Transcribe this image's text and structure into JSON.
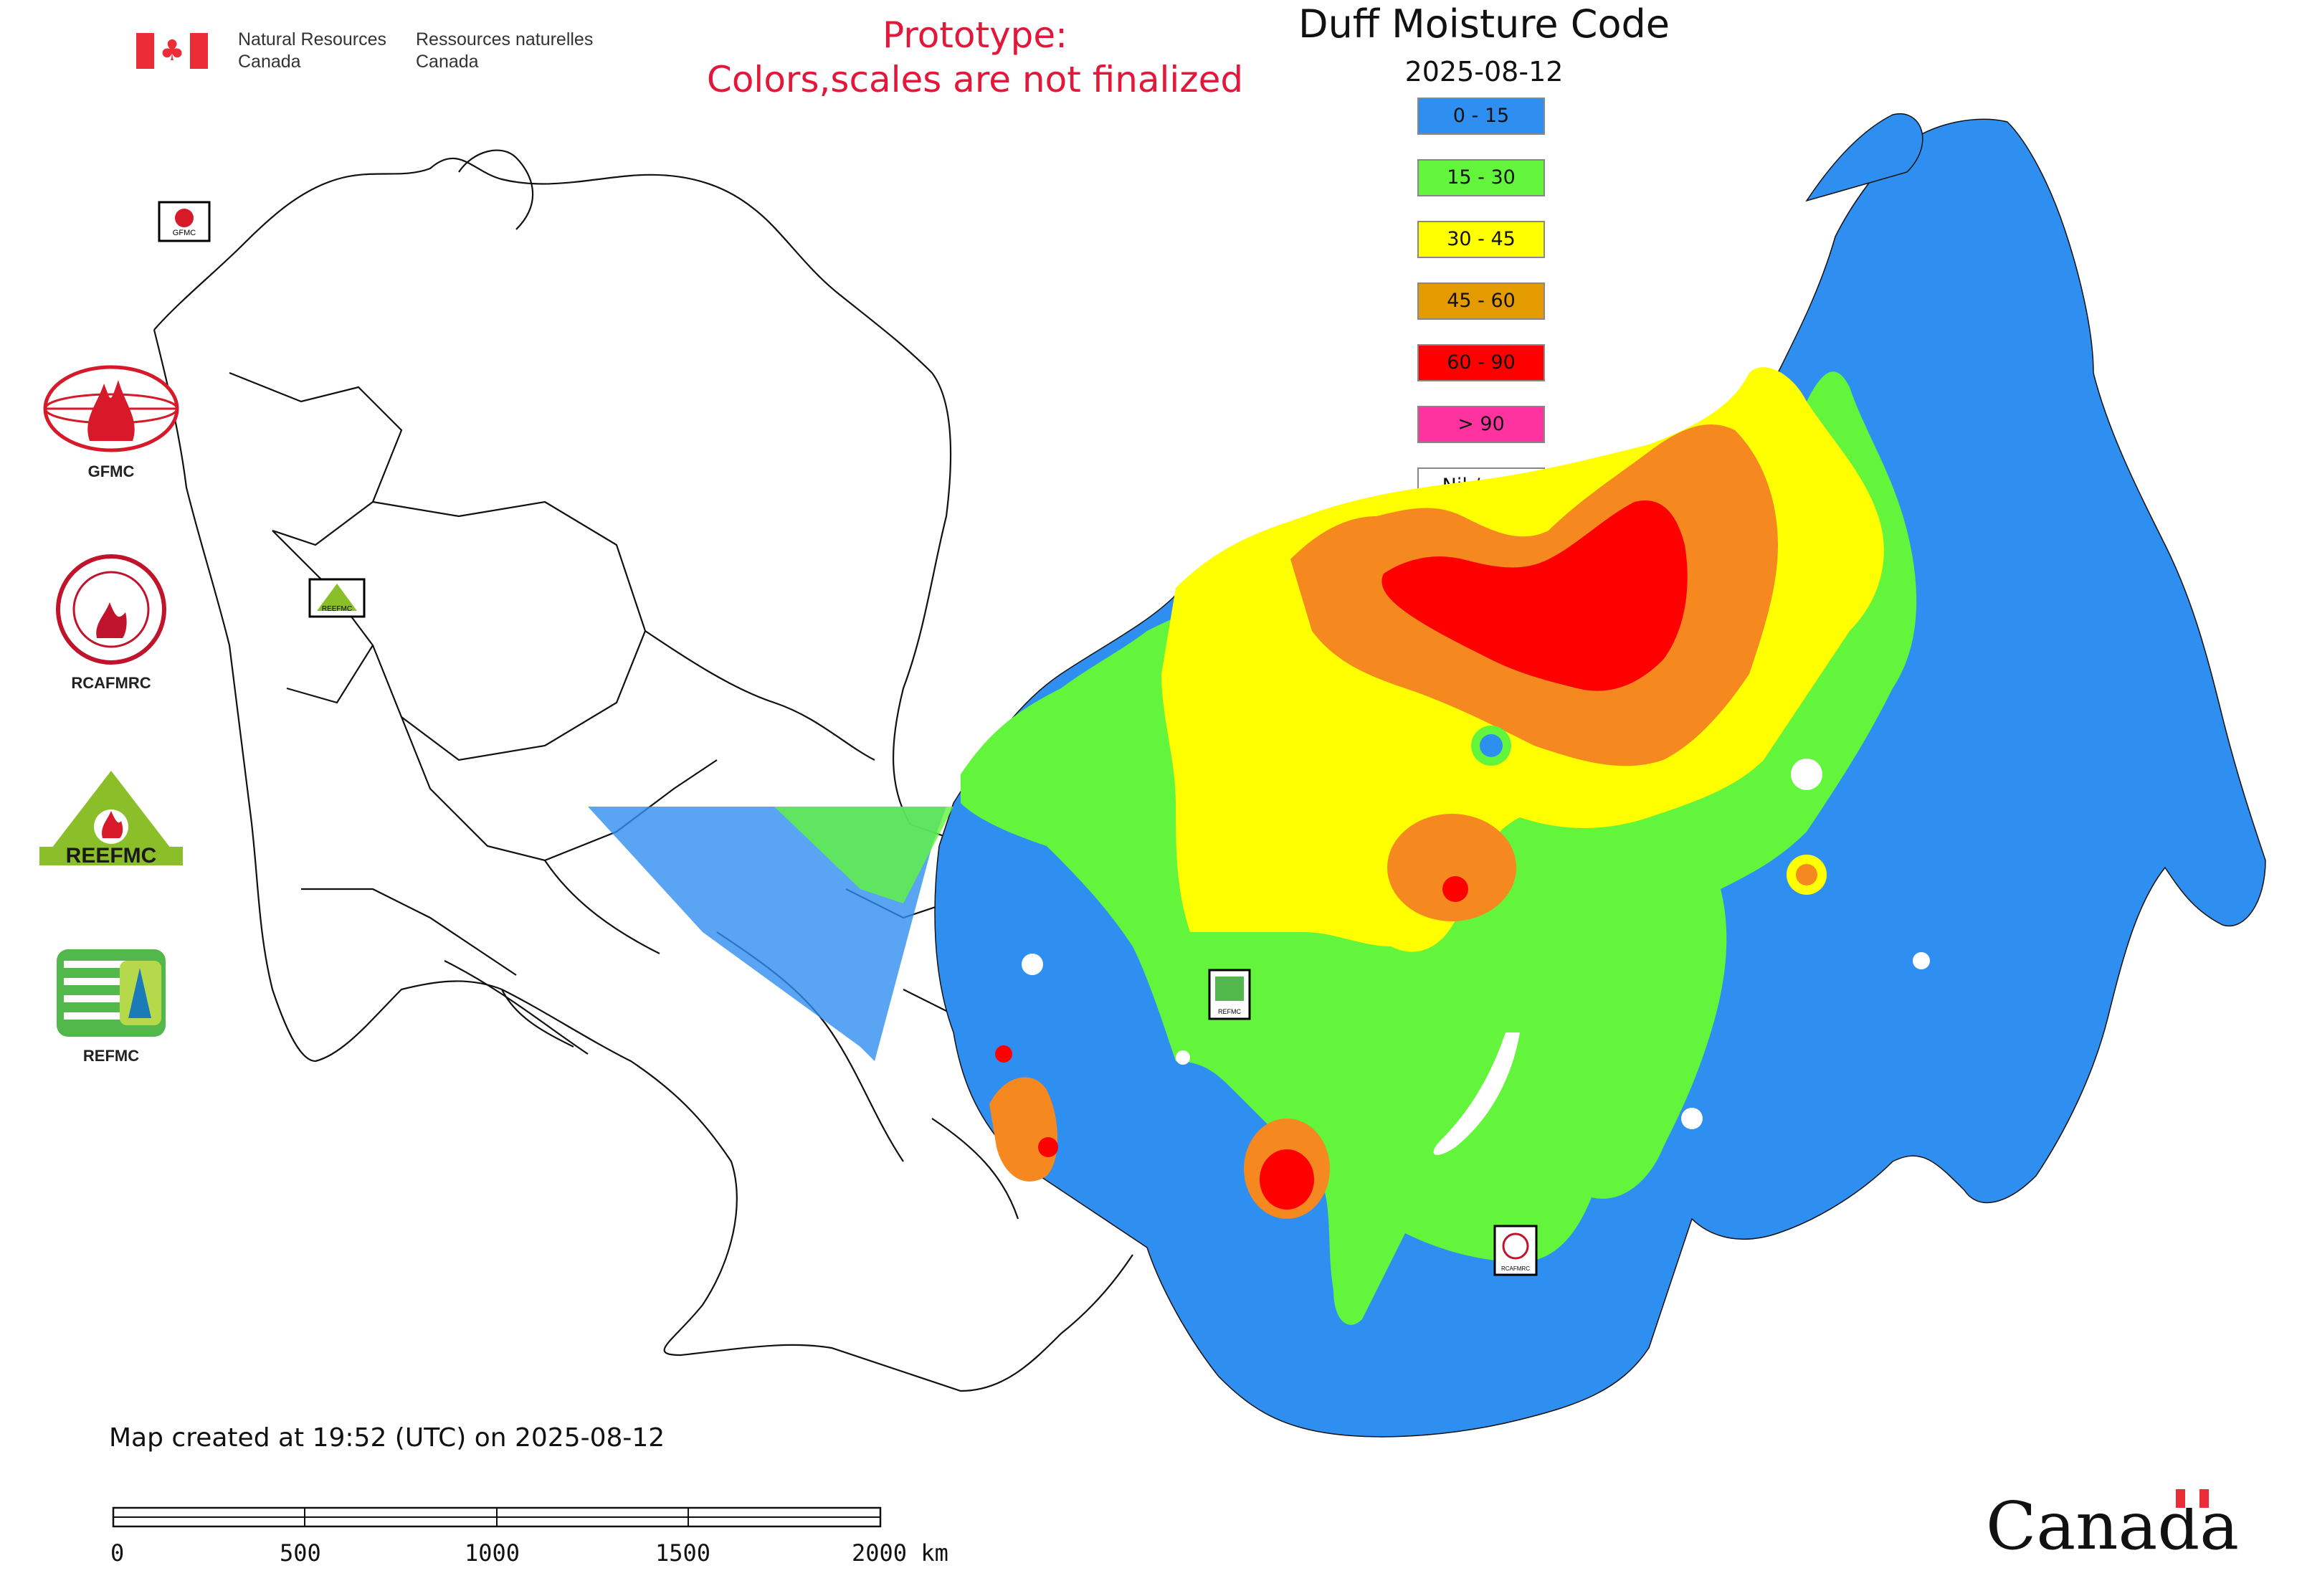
{
  "header": {
    "department_en": "Natural Resources\nCanada",
    "department_fr": "Ressources naturelles\nCanada"
  },
  "notice": {
    "line1": "Prototype:",
    "line2": "Colors,scales are not finalized"
  },
  "map": {
    "title": "Duff Moisture Code",
    "date": "2025-08-12",
    "footer": "Map created at 19:52 (UTC) on 2025-08-12"
  },
  "legend": [
    {
      "label": "0 - 15",
      "color": "#2f8ff0"
    },
    {
      "label": "15 - 30",
      "color": "#62f53c"
    },
    {
      "label": "30 - 45",
      "color": "#ffff00"
    },
    {
      "label": "45 - 60",
      "color": "#e39b00"
    },
    {
      "label": "60 - 90",
      "color": "#ff0000"
    },
    {
      "label": "> 90",
      "color": "#ff33a0"
    },
    {
      "label": "Nil / s.o.",
      "color": "#ffffff"
    }
  ],
  "logos": [
    {
      "caption": "GFMC",
      "icon": "gfmc-logo-icon"
    },
    {
      "caption": "RCAFMRC",
      "icon": "rcafmrc-logo-icon"
    },
    {
      "caption": "",
      "icon": "reefmc-logo-icon",
      "logo_text": "REEFMC"
    },
    {
      "caption": "REFMC",
      "icon": "refmc-logo-icon"
    }
  ],
  "map_markers": [
    {
      "label": "GFMC",
      "icon": "gfmc-marker-icon"
    },
    {
      "label": "REEFMC",
      "icon": "reefmc-marker-icon"
    },
    {
      "label": "REFMC",
      "icon": "refmc-marker-icon"
    },
    {
      "label": "RCAFMRC",
      "icon": "rcafmrc-marker-icon"
    }
  ],
  "scale": {
    "ticks": [
      "0",
      "500",
      "1000",
      "1500",
      "2000 km"
    ]
  },
  "wordmark": "Canada"
}
